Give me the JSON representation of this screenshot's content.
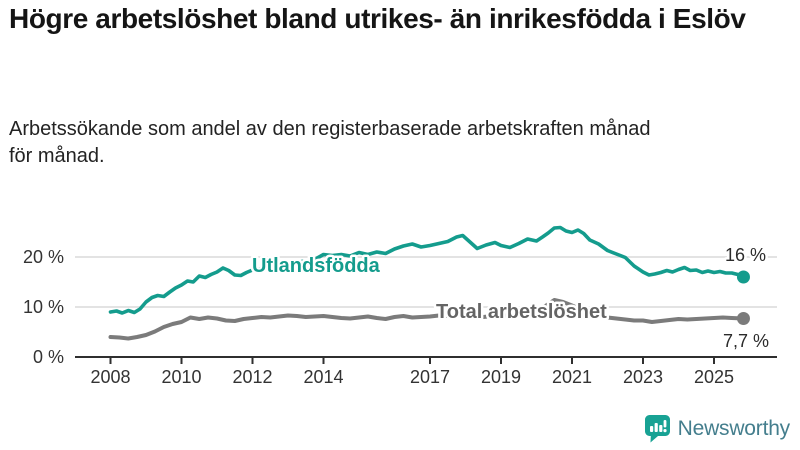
{
  "header": {
    "title": "Högre arbetslöshet bland utrikes- än inrikesfödda i Eslöv",
    "subtitle": "Arbetssökande som andel av den registerbaserade arbetskraften månad för månad."
  },
  "chart_data": {
    "type": "line",
    "x_unit": "year",
    "y_unit": "percent",
    "grid": "horizontal",
    "ylim": [
      0,
      29
    ],
    "xlim": [
      2007.3,
      2026.4
    ],
    "yticks": {
      "values": [
        0,
        10,
        20
      ],
      "labels": [
        "0 %",
        "10 %",
        "20 %"
      ]
    },
    "xticks": {
      "values": [
        2008,
        2010,
        2012,
        2014,
        2017,
        2019,
        2021,
        2023,
        2025
      ],
      "labels": [
        "2008",
        "2010",
        "2012",
        "2014",
        "2017",
        "2019",
        "2021",
        "2023",
        "2025"
      ]
    },
    "series": [
      {
        "name": "Utlandsfödda",
        "color": "#149c8d",
        "label_color": "#149c8d",
        "end_label": "16 %",
        "last_value": 16.0,
        "x": [
          2008.0,
          2008.17,
          2008.33,
          2008.5,
          2008.67,
          2008.83,
          2009.0,
          2009.17,
          2009.33,
          2009.5,
          2009.67,
          2009.83,
          2010.0,
          2010.17,
          2010.33,
          2010.5,
          2010.67,
          2010.83,
          2011.0,
          2011.17,
          2011.33,
          2011.5,
          2011.67,
          2011.83,
          2012.0,
          2012.25,
          2012.5,
          2012.75,
          2013.0,
          2013.25,
          2013.5,
          2013.75,
          2014.0,
          2014.25,
          2014.5,
          2014.75,
          2015.0,
          2015.25,
          2015.5,
          2015.75,
          2016.0,
          2016.25,
          2016.5,
          2016.75,
          2017.0,
          2017.25,
          2017.5,
          2017.75,
          2017.92,
          2018.08,
          2018.33,
          2018.58,
          2018.83,
          2019.0,
          2019.25,
          2019.5,
          2019.75,
          2020.0,
          2020.17,
          2020.33,
          2020.5,
          2020.67,
          2020.83,
          2021.0,
          2021.17,
          2021.33,
          2021.5,
          2021.75,
          2022.0,
          2022.25,
          2022.5,
          2022.75,
          2023.0,
          2023.17,
          2023.33,
          2023.5,
          2023.67,
          2023.83,
          2024.0,
          2024.17,
          2024.33,
          2024.5,
          2024.67,
          2024.83,
          2025.0,
          2025.17,
          2025.33,
          2025.5,
          2025.67,
          2025.83
        ],
        "y": [
          9.0,
          9.2,
          8.8,
          9.3,
          8.9,
          9.6,
          11.0,
          11.9,
          12.3,
          12.1,
          13.0,
          13.8,
          14.4,
          15.2,
          15.0,
          16.2,
          15.9,
          16.5,
          17.0,
          17.8,
          17.3,
          16.4,
          16.3,
          16.9,
          17.4,
          17.7,
          18.0,
          18.4,
          18.7,
          19.0,
          19.2,
          19.5,
          20.5,
          20.3,
          20.5,
          20.2,
          20.9,
          20.5,
          21.0,
          20.7,
          21.6,
          22.2,
          22.6,
          22.0,
          22.3,
          22.7,
          23.1,
          24.0,
          24.3,
          23.3,
          21.7,
          22.4,
          22.9,
          22.3,
          21.9,
          22.7,
          23.6,
          23.2,
          24.0,
          24.8,
          25.8,
          25.9,
          25.2,
          24.9,
          25.4,
          24.7,
          23.4,
          22.6,
          21.3,
          20.6,
          19.9,
          18.2,
          17.0,
          16.4,
          16.6,
          16.9,
          17.3,
          17.0,
          17.5,
          17.9,
          17.3,
          17.4,
          16.9,
          17.2,
          16.9,
          17.1,
          16.8,
          16.8,
          16.5,
          16.0
        ]
      },
      {
        "name": "Total arbetslöshet",
        "color": "#7b7b7b",
        "label_color": "#656565",
        "end_label": "7,7 %",
        "last_value": 7.7,
        "x": [
          2008.0,
          2008.25,
          2008.5,
          2008.75,
          2009.0,
          2009.25,
          2009.5,
          2009.75,
          2010.0,
          2010.25,
          2010.5,
          2010.75,
          2011.0,
          2011.25,
          2011.5,
          2011.75,
          2012.0,
          2012.25,
          2012.5,
          2012.75,
          2013.0,
          2013.25,
          2013.5,
          2013.75,
          2014.0,
          2014.25,
          2014.5,
          2014.75,
          2015.0,
          2015.25,
          2015.5,
          2015.75,
          2016.0,
          2016.25,
          2016.5,
          2016.75,
          2017.0,
          2017.25,
          2017.5,
          2017.75,
          2018.0,
          2018.25,
          2018.5,
          2018.75,
          2019.0,
          2019.25,
          2019.5,
          2019.75,
          2020.0,
          2020.25,
          2020.5,
          2020.75,
          2021.0,
          2021.25,
          2021.5,
          2021.75,
          2022.0,
          2022.25,
          2022.5,
          2022.75,
          2023.0,
          2023.25,
          2023.5,
          2023.75,
          2024.0,
          2024.25,
          2024.5,
          2024.75,
          2025.0,
          2025.25,
          2025.5,
          2025.83
        ],
        "y": [
          4.0,
          3.9,
          3.7,
          4.0,
          4.4,
          5.1,
          6.0,
          6.6,
          7.0,
          7.9,
          7.6,
          7.9,
          7.7,
          7.3,
          7.2,
          7.6,
          7.8,
          8.0,
          7.9,
          8.1,
          8.3,
          8.2,
          8.0,
          8.1,
          8.2,
          8.0,
          7.8,
          7.7,
          7.9,
          8.1,
          7.8,
          7.6,
          8.0,
          8.2,
          7.9,
          8.0,
          8.1,
          8.3,
          8.2,
          8.4,
          8.1,
          8.3,
          8.0,
          8.2,
          8.2,
          8.4,
          8.5,
          8.6,
          8.9,
          10.2,
          11.4,
          11.0,
          10.3,
          9.5,
          8.8,
          8.3,
          7.9,
          7.7,
          7.5,
          7.3,
          7.3,
          7.0,
          7.2,
          7.4,
          7.6,
          7.5,
          7.6,
          7.7,
          7.8,
          7.9,
          7.8,
          7.7
        ]
      }
    ]
  },
  "footer": {
    "brand": "Newsworthy",
    "icon": "bar-chart-speech-bubble-icon",
    "icon_color": "#18a294",
    "brand_color": "#447e8d"
  }
}
